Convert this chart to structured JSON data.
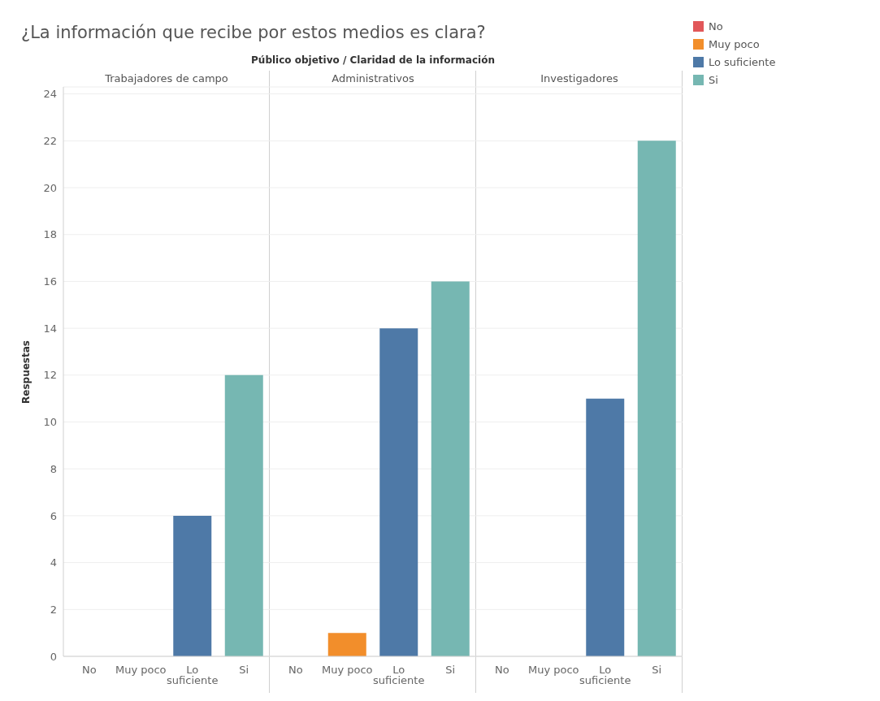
{
  "chart_data": [
    {
      "type": "bar",
      "title": "Trabajadores de campo",
      "annotations": [
        "¿La información que recibe por estos medios es clara?",
        "Público objetivo / Claridad de la información"
      ],
      "ylabel": "Respuestas",
      "categories": [
        "No",
        "Muy poco",
        "Lo suficiente",
        "Si"
      ],
      "values": [
        0,
        0,
        6,
        12
      ],
      "colors": [
        "#e15759",
        "#f28e2b",
        "#4e79a7",
        "#76b7b2"
      ],
      "ylim": [
        0,
        24.3
      ],
      "yticks": [
        0,
        2,
        4,
        6,
        8,
        10,
        12,
        14,
        16,
        18,
        20,
        22,
        24
      ],
      "grid": "y"
    },
    {
      "type": "bar",
      "title": "Administrativos",
      "categories": [
        "No",
        "Muy poco",
        "Lo suficiente",
        "Si"
      ],
      "values": [
        0,
        1,
        14,
        16
      ],
      "colors": [
        "#e15759",
        "#f28e2b",
        "#4e79a7",
        "#76b7b2"
      ],
      "ylim": [
        0,
        24.3
      ],
      "yticks": [
        0,
        2,
        4,
        6,
        8,
        10,
        12,
        14,
        16,
        18,
        20,
        22,
        24
      ],
      "grid": "y",
      "tick_labels": "x"
    },
    {
      "type": "bar",
      "title": "Investigadores",
      "categories": [
        "No",
        "Muy poco",
        "Lo suficiente",
        "Si"
      ],
      "values": [
        0,
        0,
        11,
        22
      ],
      "colors": [
        "#e15759",
        "#f28e2b",
        "#4e79a7",
        "#76b7b2"
      ],
      "ylim": [
        0,
        24.3
      ],
      "yticks": [
        0,
        2,
        4,
        6,
        8,
        10,
        12,
        14,
        16,
        18,
        20,
        22,
        24
      ],
      "grid": "y",
      "tick_labels": "x"
    }
  ]
}
